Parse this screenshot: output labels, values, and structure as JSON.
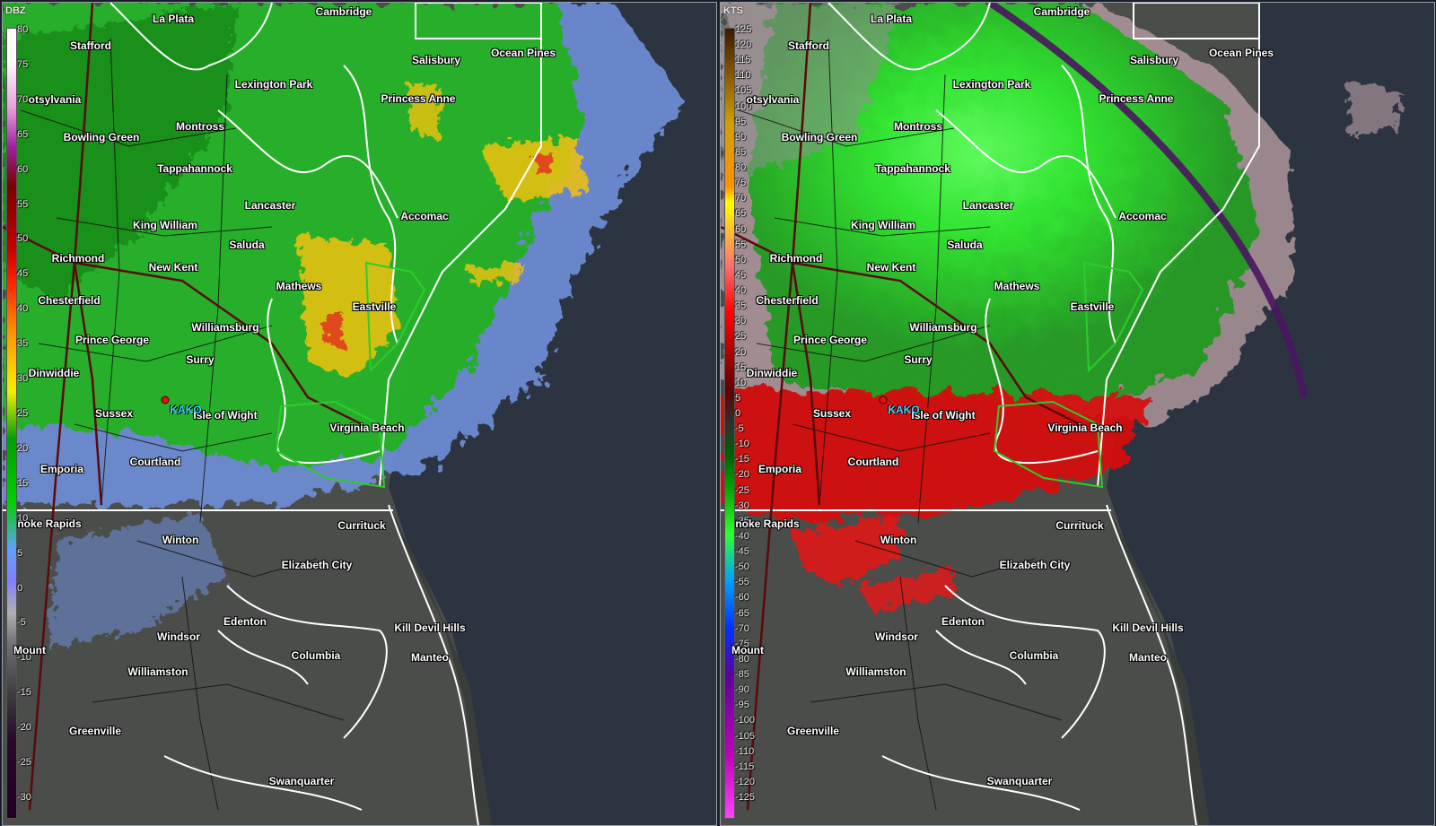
{
  "left_panel": {
    "scale_label": "DBZ",
    "ticks": [
      "80",
      "75",
      "70",
      "65",
      "60",
      "55",
      "50",
      "45",
      "40",
      "35",
      "30",
      "25",
      "20",
      "15",
      "10",
      "5",
      "0",
      "-5",
      "-10",
      "-15",
      "-20",
      "-25",
      "-30"
    ],
    "colors": {
      "light": "#6e8fd8",
      "moderate": "#1fb21f",
      "heavy": "#f2c20a",
      "intense": "#e0481a"
    }
  },
  "right_panel": {
    "scale_label": "KTS",
    "ticks": [
      "125",
      "120",
      "115",
      "110",
      "105",
      "100",
      "95",
      "90",
      "85",
      "80",
      "75",
      "70",
      "65",
      "60",
      "55",
      "50",
      "45",
      "40",
      "35",
      "30",
      "25",
      "20",
      "15",
      "10",
      "5",
      "0",
      "-5",
      "-10",
      "-15",
      "-20",
      "-25",
      "-30",
      "-35",
      "-40",
      "-45",
      "-50",
      "-55",
      "-60",
      "-65",
      "-70",
      "-75",
      "-80",
      "-85",
      "-90",
      "-95",
      "-100",
      "-105",
      "-110",
      "-115",
      "-120",
      "-125"
    ],
    "colors": {
      "inbound": "#2cf02c",
      "outbound": "#e01414",
      "neutral": "#bfa3a8",
      "range_ring": "#4a1560"
    }
  },
  "cities": [
    {
      "name": "La Plata"
    },
    {
      "name": "Cambridge"
    },
    {
      "name": "Stafford"
    },
    {
      "name": "Salisbury"
    },
    {
      "name": "Ocean Pines"
    },
    {
      "name": "otsylvania"
    },
    {
      "name": "Lexington Park"
    },
    {
      "name": "Princess Anne"
    },
    {
      "name": "Montross"
    },
    {
      "name": "Bowling Green"
    },
    {
      "name": "Tappahannock"
    },
    {
      "name": "Lancaster"
    },
    {
      "name": "Accomac"
    },
    {
      "name": "King William"
    },
    {
      "name": "Saluda"
    },
    {
      "name": "Richmond"
    },
    {
      "name": "New Kent"
    },
    {
      "name": "Mathews"
    },
    {
      "name": "Chesterfield"
    },
    {
      "name": "Eastville"
    },
    {
      "name": "Williamsburg"
    },
    {
      "name": "Prince George"
    },
    {
      "name": "Surry"
    },
    {
      "name": "Dinwiddie"
    },
    {
      "name": "Sussex"
    },
    {
      "name": "Isle of Wight"
    },
    {
      "name": "Virginia Beach"
    },
    {
      "name": "Courtland"
    },
    {
      "name": "Emporia"
    },
    {
      "name": "noke Rapids"
    },
    {
      "name": "Winton"
    },
    {
      "name": "Currituck"
    },
    {
      "name": "Elizabeth City"
    },
    {
      "name": "Edenton"
    },
    {
      "name": "Kill Devil Hills"
    },
    {
      "name": "Windsor"
    },
    {
      "name": "Mount"
    },
    {
      "name": "Columbia"
    },
    {
      "name": "Manteo"
    },
    {
      "name": "Williamston"
    },
    {
      "name": "Greenville"
    },
    {
      "name": "Swanquarter"
    }
  ],
  "station": {
    "name": "KAKO"
  }
}
